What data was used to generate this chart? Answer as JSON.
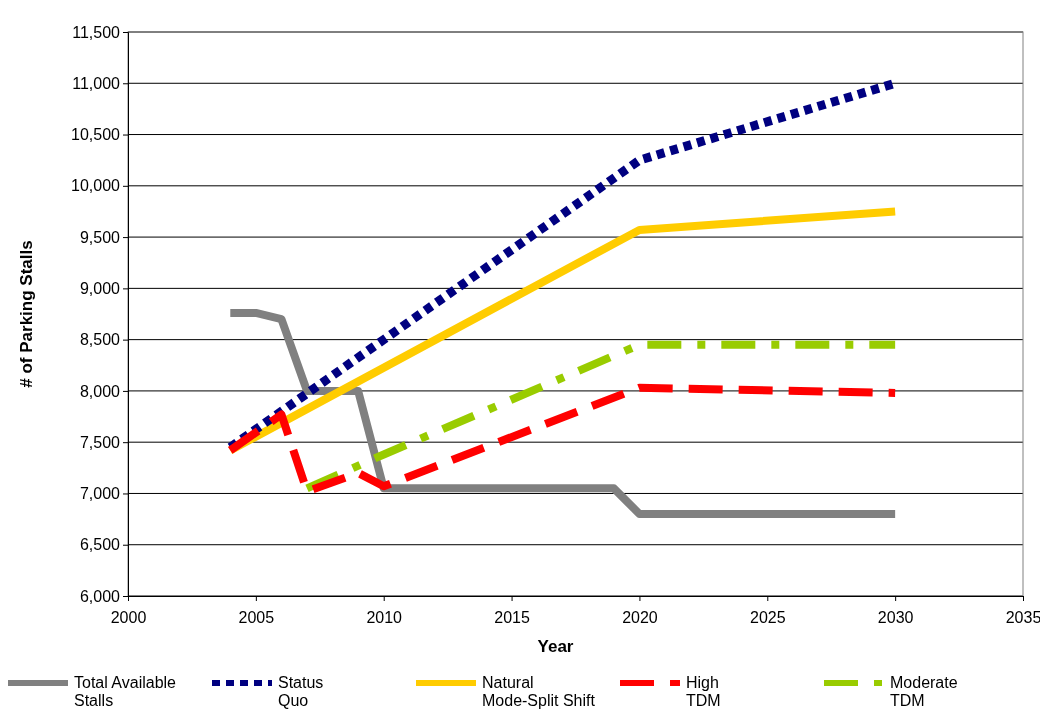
{
  "chart_data": {
    "type": "line",
    "xlabel": "Year",
    "ylabel": "# of Parking Stalls",
    "xlim": [
      2000,
      2035
    ],
    "xticks": [
      2000,
      2005,
      2010,
      2015,
      2020,
      2025,
      2030,
      2035
    ],
    "ylim": [
      6000,
      11500
    ],
    "yticks": [
      {
        "value": 6000,
        "label": "6,000"
      },
      {
        "value": 6500,
        "label": "6,500"
      },
      {
        "value": 7000,
        "label": "7,000"
      },
      {
        "value": 7500,
        "label": "7,500"
      },
      {
        "value": 8000,
        "label": "8,000"
      },
      {
        "value": 8500,
        "label": "8,500"
      },
      {
        "value": 9000,
        "label": "9,000"
      },
      {
        "value": 9500,
        "label": "9,500"
      },
      {
        "value": 10000,
        "label": "10,000"
      },
      {
        "value": 10500,
        "label": "10,500"
      },
      {
        "value": 11000,
        "label": "11,000"
      },
      {
        "value": 11500,
        "label": "11,500"
      }
    ],
    "grid": "y",
    "legend": "bottom",
    "series": [
      {
        "name": "Total Available Stalls",
        "color": "#808080",
        "line_style": "solid",
        "x": [
          2004,
          2005,
          2006,
          2007,
          2009,
          2010,
          2019,
          2020,
          2030
        ],
        "values": [
          8760,
          8760,
          8700,
          8000,
          8000,
          7050,
          7050,
          6800,
          6800
        ]
      },
      {
        "name": "Status Quo",
        "color": "#000080",
        "line_style": "dotted",
        "x": [
          2004,
          2010,
          2020,
          2030
        ],
        "values": [
          7450,
          8500,
          10250,
          11000
        ]
      },
      {
        "name": "Natural Mode-Split Shift",
        "color": "#ffcc00",
        "line_style": "solid",
        "x": [
          2004,
          2020,
          2030
        ],
        "values": [
          7420,
          9570,
          9750
        ]
      },
      {
        "name": "High TDM",
        "color": "#ff0000",
        "line_style": "dashed",
        "x": [
          2004,
          2006,
          2007,
          2009,
          2010,
          2020,
          2030
        ],
        "values": [
          7420,
          7770,
          7020,
          7200,
          7070,
          8030,
          7980
        ]
      },
      {
        "name": "Moderate TDM",
        "color": "#99cc00",
        "line_style": "dashdot",
        "x": [
          2007,
          2010,
          2020,
          2030
        ],
        "values": [
          7050,
          7380,
          8450,
          8450
        ]
      }
    ]
  }
}
